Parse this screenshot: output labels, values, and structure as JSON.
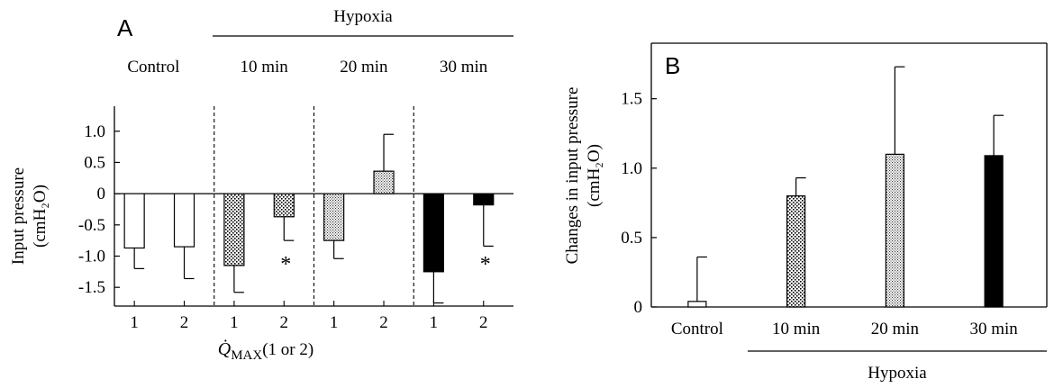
{
  "chart_data": [
    {
      "panel": "A",
      "type": "bar",
      "ylabel": "Input pressure",
      "ylabel_unit": "(cmH₂O)",
      "xlabel_main": "Q̇",
      "xlabel_sub": "MAX",
      "xlabel_suffix": "(1 or 2)",
      "hypoxia_label": "Hypoxia",
      "ylim": [
        -1.8,
        1.4
      ],
      "yticks": [
        {
          "value": 1.0,
          "label": "1.0"
        },
        {
          "value": 0.5,
          "label": "0.5"
        },
        {
          "value": 0,
          "label": "0"
        },
        {
          "value": -0.5,
          "label": "-0.5"
        },
        {
          "value": -1.0,
          "label": "-1.0"
        },
        {
          "value": -1.5,
          "label": "-1.5"
        }
      ],
      "groups": [
        {
          "label": "Control",
          "pattern": "white",
          "bars": [
            {
              "x": "1",
              "value": -0.87,
              "error": 0.33,
              "star": ""
            },
            {
              "x": "2",
              "value": -0.85,
              "error": 0.51,
              "star": ""
            }
          ]
        },
        {
          "label": "10 min",
          "pattern": "dots",
          "bars": [
            {
              "x": "1",
              "value": -1.15,
              "error": 0.43,
              "star": ""
            },
            {
              "x": "2",
              "value": -0.37,
              "error": 0.38,
              "star": "*"
            }
          ]
        },
        {
          "label": "20 min",
          "pattern": "fine",
          "bars": [
            {
              "x": "1",
              "value": -0.75,
              "error": 0.29,
              "star": ""
            },
            {
              "x": "2",
              "value": 0.36,
              "error": 0.59,
              "star": ""
            }
          ]
        },
        {
          "label": "30 min",
          "pattern": "black",
          "bars": [
            {
              "x": "1",
              "value": -1.25,
              "error": 0.5,
              "star": ""
            },
            {
              "x": "2",
              "value": -0.18,
              "error": 0.66,
              "star": "*"
            }
          ]
        }
      ]
    },
    {
      "panel": "B",
      "type": "bar",
      "ylabel": "Changes in input pressure",
      "ylabel_unit": "(cmH₂O)",
      "hypoxia_label": "Hypoxia",
      "ylim": [
        0,
        1.9
      ],
      "yticks": [
        {
          "value": 0,
          "label": "0"
        },
        {
          "value": 0.5,
          "label": "0.5"
        },
        {
          "value": 1.0,
          "label": "1.0"
        },
        {
          "value": 1.5,
          "label": "1.5"
        }
      ],
      "categories": [
        "Control",
        "10 min",
        "20 min",
        "30 min"
      ],
      "values": [
        0.04,
        0.8,
        1.1,
        1.09
      ],
      "errors": [
        0.32,
        0.13,
        0.63,
        0.29
      ],
      "patterns": [
        "white",
        "dots",
        "fine",
        "black"
      ]
    }
  ],
  "colors": {
    "axis": "#000000",
    "bar_black": "#000000",
    "bar_white": "#ffffff"
  }
}
